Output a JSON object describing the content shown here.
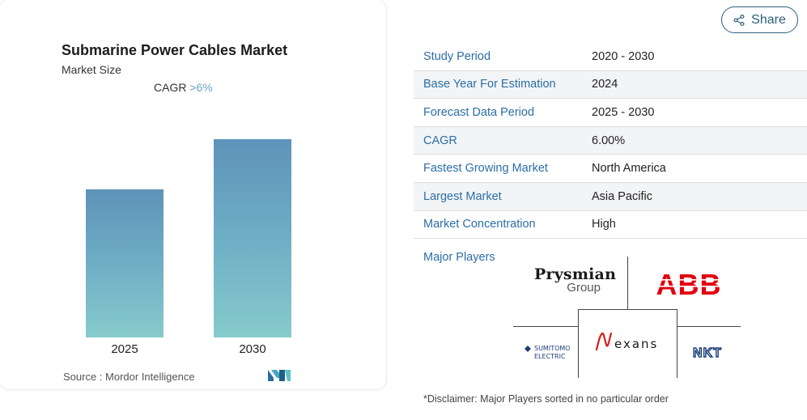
{
  "chart": {
    "title": "Submarine Power Cables Market",
    "subtitle": "Market Size",
    "cagr_label": "CAGR",
    "cagr_value": ">6%",
    "source": "Source :  Mordor Intelligence"
  },
  "chart_data": {
    "type": "bar",
    "title": "Submarine Power Cables Market",
    "categories": [
      "2025",
      "2030"
    ],
    "values": [
      1.0,
      1.34
    ],
    "xlabel": "",
    "ylabel": "",
    "grid": false,
    "colors": [
      "#5e93b9",
      "#86cbcd"
    ]
  },
  "share": {
    "label": "Share",
    "icon": "share-icon"
  },
  "table": {
    "rows": [
      {
        "key": "Study Period",
        "value": "2020 - 2030"
      },
      {
        "key": "Base Year For Estimation",
        "value": "2024"
      },
      {
        "key": "Forecast Data Period",
        "value": "2025 - 2030"
      },
      {
        "key": "CAGR",
        "value": "6.00%"
      },
      {
        "key": "Fastest Growing Market",
        "value": "North America"
      },
      {
        "key": "Largest Market",
        "value": "Asia Pacific"
      },
      {
        "key": "Market Concentration",
        "value": "High"
      }
    ]
  },
  "major_players": {
    "label": "Major Players",
    "prysmian_line1": "Prysmian",
    "prysmian_line2": "Group",
    "abb": "ABB",
    "nexans": "exans",
    "sumitomo_line1": "SUMITOMO",
    "sumitomo_line2": "ELECTRIC",
    "nkt": "NKT"
  },
  "disclaimer": "*Disclaimer: Major Players sorted in no particular order",
  "colors": {
    "accent": "#2a6ea6",
    "bar_top": "#5e93b9",
    "bar_bottom": "#86cbcd",
    "abb_red": "#e3000f",
    "nexans_red": "#d81e1e",
    "nkt_blue": "#1c3d7a"
  }
}
